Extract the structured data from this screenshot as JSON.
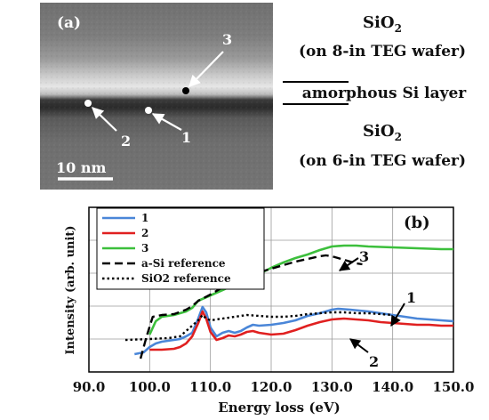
{
  "panel_a": {
    "label": "(a)",
    "scale_bar": "10 nm",
    "points": [
      "1",
      "2",
      "3"
    ],
    "top_layer": {
      "formula": "SiO",
      "subscript": "2",
      "wafer": "(on 8-in TEG wafer)"
    },
    "middle_layer": "amorphous Si layer",
    "bottom_layer": {
      "formula": "SiO",
      "subscript": "2",
      "wafer": "(on 6-in TEG wafer)"
    }
  },
  "chart_data": {
    "type": "line",
    "panel_label": "(b)",
    "xlabel": "Energy loss (eV)",
    "ylabel": "Intensity (arb. unit)",
    "xlim": [
      90,
      150
    ],
    "x_ticks": [
      "90.0",
      "100.0",
      "110.0",
      "120.0",
      "130.0",
      "140.0",
      "150.0"
    ],
    "legend_position": "top-left",
    "grid": true,
    "series": [
      {
        "name": "1",
        "color": "#4a86d8",
        "dash": "solid",
        "points": [
          [
            97.5,
            0.2
          ],
          [
            99,
            0.22
          ],
          [
            100,
            0.28
          ],
          [
            101,
            0.32
          ],
          [
            102,
            0.34
          ],
          [
            103,
            0.35
          ],
          [
            104,
            0.36
          ],
          [
            105,
            0.37
          ],
          [
            106,
            0.4
          ],
          [
            107,
            0.44
          ],
          [
            108,
            0.6
          ],
          [
            108.7,
            0.73
          ],
          [
            109.3,
            0.67
          ],
          [
            110,
            0.5
          ],
          [
            111,
            0.4
          ],
          [
            112,
            0.44
          ],
          [
            113,
            0.46
          ],
          [
            114,
            0.44
          ],
          [
            115,
            0.46
          ],
          [
            116,
            0.5
          ],
          [
            117,
            0.53
          ],
          [
            118,
            0.52
          ],
          [
            120,
            0.53
          ],
          [
            122,
            0.55
          ],
          [
            124,
            0.58
          ],
          [
            126,
            0.63
          ],
          [
            128,
            0.66
          ],
          [
            130,
            0.7
          ],
          [
            131,
            0.71
          ],
          [
            133,
            0.7
          ],
          [
            136,
            0.68
          ],
          [
            138,
            0.66
          ],
          [
            140,
            0.64
          ],
          [
            142,
            0.62
          ],
          [
            144,
            0.6
          ],
          [
            146,
            0.59
          ],
          [
            148,
            0.58
          ],
          [
            150,
            0.57
          ]
        ]
      },
      {
        "name": "2",
        "color": "#e02020",
        "dash": "solid",
        "points": [
          [
            100,
            0.25
          ],
          [
            102,
            0.25
          ],
          [
            104,
            0.26
          ],
          [
            105,
            0.28
          ],
          [
            106,
            0.32
          ],
          [
            107,
            0.4
          ],
          [
            108,
            0.55
          ],
          [
            108.7,
            0.68
          ],
          [
            109.3,
            0.6
          ],
          [
            110,
            0.45
          ],
          [
            111,
            0.36
          ],
          [
            112,
            0.38
          ],
          [
            113,
            0.41
          ],
          [
            114,
            0.4
          ],
          [
            115,
            0.42
          ],
          [
            116,
            0.45
          ],
          [
            117,
            0.46
          ],
          [
            118,
            0.44
          ],
          [
            120,
            0.42
          ],
          [
            122,
            0.43
          ],
          [
            124,
            0.47
          ],
          [
            126,
            0.52
          ],
          [
            128,
            0.56
          ],
          [
            130,
            0.59
          ],
          [
            132,
            0.6
          ],
          [
            134,
            0.59
          ],
          [
            136,
            0.58
          ],
          [
            138,
            0.56
          ],
          [
            140,
            0.55
          ],
          [
            142,
            0.54
          ],
          [
            144,
            0.53
          ],
          [
            146,
            0.53
          ],
          [
            148,
            0.52
          ],
          [
            150,
            0.52
          ]
        ]
      },
      {
        "name": "3",
        "color": "#3cbf3c",
        "dash": "solid",
        "points": [
          [
            100,
            0.42
          ],
          [
            101,
            0.57
          ],
          [
            102,
            0.62
          ],
          [
            104,
            0.64
          ],
          [
            106,
            0.68
          ],
          [
            107,
            0.72
          ],
          [
            108,
            0.8
          ],
          [
            110,
            0.86
          ],
          [
            112,
            0.92
          ],
          [
            114,
            0.98
          ],
          [
            116,
            1.04
          ],
          [
            118,
            1.1
          ],
          [
            120,
            1.17
          ],
          [
            122,
            1.23
          ],
          [
            124,
            1.28
          ],
          [
            126,
            1.32
          ],
          [
            128,
            1.37
          ],
          [
            130,
            1.41
          ],
          [
            132,
            1.42
          ],
          [
            134,
            1.42
          ],
          [
            136,
            1.41
          ],
          [
            140,
            1.4
          ],
          [
            144,
            1.39
          ],
          [
            148,
            1.38
          ],
          [
            150,
            1.38
          ]
        ]
      },
      {
        "name": "a-Si  reference",
        "color": "#000000",
        "dash": "dashed",
        "points": [
          [
            98.5,
            0.15
          ],
          [
            99.5,
            0.4
          ],
          [
            100.5,
            0.62
          ],
          [
            102,
            0.64
          ],
          [
            104,
            0.65
          ],
          [
            106,
            0.7
          ],
          [
            107,
            0.74
          ],
          [
            108,
            0.8
          ],
          [
            110,
            0.87
          ],
          [
            112,
            0.95
          ],
          [
            114,
            1.01
          ],
          [
            116,
            1.07
          ],
          [
            118,
            1.12
          ],
          [
            120,
            1.16
          ],
          [
            122,
            1.2
          ],
          [
            124,
            1.24
          ],
          [
            126,
            1.27
          ],
          [
            128,
            1.3
          ],
          [
            129,
            1.31
          ],
          [
            130,
            1.3
          ],
          [
            132,
            1.26
          ],
          [
            134,
            1.22
          ],
          [
            135,
            1.21
          ]
        ]
      },
      {
        "name": "SiO2  reference",
        "color": "#000000",
        "dash": "dotted",
        "points": [
          [
            96,
            0.36
          ],
          [
            100,
            0.37
          ],
          [
            103,
            0.38
          ],
          [
            105,
            0.4
          ],
          [
            106,
            0.46
          ],
          [
            107,
            0.52
          ],
          [
            108,
            0.58
          ],
          [
            108.7,
            0.64
          ],
          [
            109.3,
            0.6
          ],
          [
            110,
            0.58
          ],
          [
            112,
            0.6
          ],
          [
            114,
            0.62
          ],
          [
            116,
            0.64
          ],
          [
            118,
            0.63
          ],
          [
            120,
            0.62
          ],
          [
            122,
            0.62
          ],
          [
            124,
            0.63
          ],
          [
            126,
            0.65
          ],
          [
            128,
            0.66
          ],
          [
            130,
            0.67
          ],
          [
            132,
            0.67
          ],
          [
            134,
            0.66
          ],
          [
            136,
            0.66
          ],
          [
            138,
            0.65
          ],
          [
            140,
            0.64
          ]
        ]
      }
    ],
    "annotations": [
      "3",
      "1",
      "2"
    ]
  }
}
